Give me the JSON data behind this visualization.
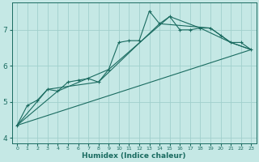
{
  "xlabel": "Humidex (Indice chaleur)",
  "bg_color": "#c5e8e5",
  "grid_color": "#a0d0cc",
  "line_color": "#1a6b60",
  "xlim": [
    -0.5,
    23.5
  ],
  "ylim": [
    3.85,
    7.75
  ],
  "yticks": [
    4,
    5,
    6,
    7
  ],
  "xticks": [
    0,
    1,
    2,
    3,
    4,
    5,
    6,
    7,
    8,
    9,
    10,
    11,
    12,
    13,
    14,
    15,
    16,
    17,
    18,
    19,
    20,
    21,
    22,
    23
  ],
  "series1_x": [
    0,
    1,
    2,
    3,
    4,
    5,
    6,
    7,
    8,
    9,
    10,
    11,
    12,
    13,
    14,
    15,
    16,
    17,
    18,
    19,
    20,
    21,
    22,
    23
  ],
  "series1_y": [
    4.35,
    4.9,
    5.05,
    5.35,
    5.3,
    5.55,
    5.6,
    5.65,
    5.55,
    5.9,
    6.65,
    6.7,
    6.7,
    7.52,
    7.17,
    7.37,
    7.0,
    7.0,
    7.05,
    7.05,
    6.85,
    6.65,
    6.65,
    6.45
  ],
  "series2_x": [
    0,
    3,
    8,
    14,
    19,
    21,
    23
  ],
  "series2_y": [
    4.35,
    5.35,
    5.55,
    7.17,
    7.05,
    6.65,
    6.45
  ],
  "series3_x": [
    0,
    4,
    9,
    15,
    18,
    21,
    23
  ],
  "series3_y": [
    4.35,
    5.3,
    5.9,
    7.37,
    7.05,
    6.65,
    6.45
  ],
  "series4_x": [
    0,
    23
  ],
  "series4_y": [
    4.35,
    6.45
  ]
}
